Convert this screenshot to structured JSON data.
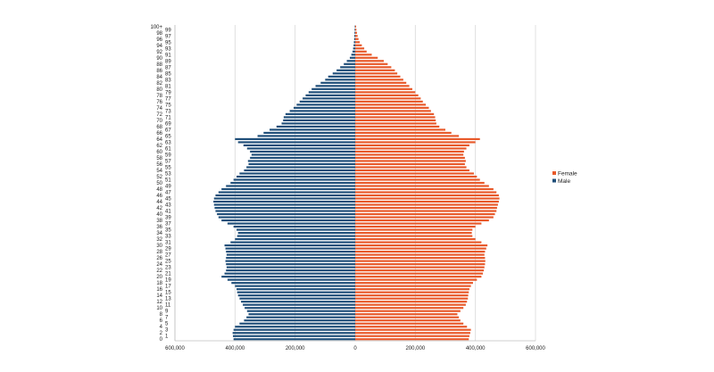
{
  "chart_data": {
    "type": "bar",
    "orientation": "horizontal-population-pyramid",
    "xlim": [
      -600000,
      600000
    ],
    "x_tick_values": [
      -600000,
      -400000,
      -200000,
      0,
      200000,
      400000,
      600000
    ],
    "x_tick_labels": [
      "600,000",
      "400,000",
      "200,000",
      "0",
      "200,000",
      "400,000",
      "600,000"
    ],
    "grid": true,
    "legend_position": "right",
    "age_labels": [
      "0",
      "1",
      "2",
      "3",
      "4",
      "5",
      "6",
      "7",
      "8",
      "9",
      "10",
      "11",
      "12",
      "13",
      "14",
      "15",
      "16",
      "17",
      "18",
      "19",
      "20",
      "21",
      "22",
      "23",
      "24",
      "25",
      "26",
      "27",
      "28",
      "29",
      "30",
      "31",
      "32",
      "33",
      "34",
      "35",
      "36",
      "37",
      "38",
      "39",
      "40",
      "41",
      "42",
      "43",
      "44",
      "45",
      "46",
      "47",
      "48",
      "49",
      "50",
      "51",
      "52",
      "53",
      "54",
      "55",
      "56",
      "57",
      "58",
      "59",
      "60",
      "61",
      "62",
      "63",
      "64",
      "65",
      "66",
      "67",
      "68",
      "69",
      "70",
      "71",
      "72",
      "73",
      "74",
      "75",
      "76",
      "77",
      "78",
      "79",
      "80",
      "81",
      "82",
      "83",
      "84",
      "85",
      "86",
      "87",
      "88",
      "89",
      "90",
      "91",
      "92",
      "93",
      "94",
      "95",
      "96",
      "97",
      "98",
      "99",
      "100+"
    ],
    "series": [
      {
        "name": "Female",
        "color": "#e8592a",
        "values": [
          378000,
          380000,
          383000,
          385000,
          372000,
          360000,
          350000,
          345000,
          340000,
          350000,
          360000,
          368000,
          372000,
          375000,
          376000,
          378000,
          380000,
          385000,
          392000,
          405000,
          420000,
          425000,
          428000,
          430000,
          432000,
          433000,
          432000,
          430000,
          432000,
          436000,
          440000,
          420000,
          400000,
          390000,
          388000,
          390000,
          400000,
          420000,
          445000,
          460000,
          465000,
          470000,
          472000,
          475000,
          478000,
          480000,
          478000,
          470000,
          460000,
          445000,
          430000,
          415000,
          405000,
          395000,
          380000,
          370000,
          365000,
          368000,
          365000,
          360000,
          362000,
          370000,
          380000,
          400000,
          415000,
          345000,
          320000,
          300000,
          280000,
          270000,
          268000,
          266000,
          262000,
          252000,
          245000,
          235000,
          225000,
          218000,
          210000,
          200000,
          190000,
          180000,
          170000,
          160000,
          150000,
          140000,
          132000,
          120000,
          108000,
          95000,
          75000,
          55000,
          38000,
          30000,
          22000,
          15000,
          11000,
          8000,
          6000,
          4000,
          3000
        ]
      },
      {
        "name": "Male",
        "color": "#1f4e79",
        "values": [
          405000,
          407000,
          408000,
          405000,
          400000,
          385000,
          370000,
          362000,
          355000,
          360000,
          368000,
          374000,
          380000,
          385000,
          390000,
          393000,
          395000,
          400000,
          412000,
          425000,
          445000,
          435000,
          430000,
          428000,
          430000,
          432000,
          430000,
          428000,
          430000,
          432000,
          435000,
          415000,
          400000,
          393000,
          390000,
          395000,
          405000,
          425000,
          445000,
          455000,
          460000,
          465000,
          468000,
          470000,
          472000,
          470000,
          465000,
          455000,
          445000,
          430000,
          415000,
          405000,
          395000,
          385000,
          370000,
          362000,
          355000,
          357000,
          350000,
          345000,
          350000,
          360000,
          372000,
          390000,
          400000,
          325000,
          305000,
          285000,
          262000,
          245000,
          240000,
          238000,
          232000,
          218000,
          205000,
          195000,
          185000,
          175000,
          165000,
          155000,
          145000,
          132000,
          115000,
          100000,
          90000,
          75000,
          62000,
          50000,
          38000,
          28000,
          18000,
          13000,
          9000,
          7000,
          5500,
          4500,
          3500,
          3000,
          2500,
          2000,
          1500
        ]
      }
    ]
  }
}
